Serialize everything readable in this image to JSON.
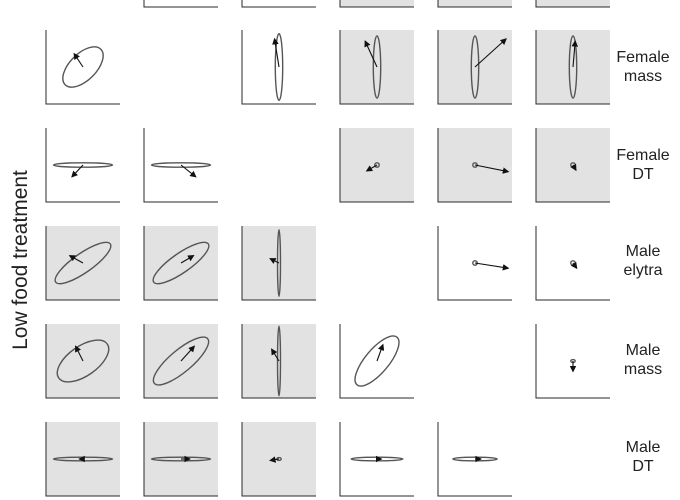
{
  "side_title": "Low food treatment",
  "row_labels": [
    {
      "line1": "Female",
      "line2": "mass"
    },
    {
      "line1": "Female",
      "line2": "DT"
    },
    {
      "line1": "Male",
      "line2": "elytra"
    },
    {
      "line1": "Male",
      "line2": "mass"
    },
    {
      "line1": "Male",
      "line2": "DT"
    }
  ],
  "colors": {
    "shaded_panel": "#e2e2e2",
    "ink": "#555555",
    "arrow": "#111111"
  },
  "panels": [
    {
      "row": 0,
      "col": 0,
      "shaded": false,
      "ellipse": {
        "rx": 0.34,
        "ry": 0.18,
        "angle": -45
      },
      "arrow": {
        "dx": -0.12,
        "dy": -0.18
      }
    },
    {
      "row": 0,
      "col": 2,
      "shaded": false,
      "ellipse": {
        "rx": 0.45,
        "ry": 0.05,
        "angle": -90
      },
      "arrow": {
        "dx": -0.06,
        "dy": -0.38
      }
    },
    {
      "row": 0,
      "col": 3,
      "shaded": true,
      "ellipse": {
        "rx": 0.42,
        "ry": 0.05,
        "angle": -90
      },
      "arrow": {
        "dx": -0.16,
        "dy": -0.35
      }
    },
    {
      "row": 0,
      "col": 4,
      "shaded": true,
      "ellipse": {
        "rx": 0.42,
        "ry": 0.05,
        "angle": -90
      },
      "arrow": {
        "dx": 0.42,
        "dy": -0.38
      }
    },
    {
      "row": 0,
      "col": 5,
      "shaded": true,
      "ellipse": {
        "rx": 0.42,
        "ry": 0.05,
        "angle": -90
      },
      "arrow": {
        "dx": 0.03,
        "dy": -0.35
      }
    },
    {
      "row": 1,
      "col": 0,
      "shaded": false,
      "ellipse": {
        "rx": 0.4,
        "ry": 0.03,
        "angle": 0
      },
      "arrow": {
        "dx": -0.15,
        "dy": 0.16
      }
    },
    {
      "row": 1,
      "col": 1,
      "shaded": false,
      "ellipse": {
        "rx": 0.4,
        "ry": 0.03,
        "angle": 0
      },
      "arrow": {
        "dx": 0.2,
        "dy": 0.16
      }
    },
    {
      "row": 1,
      "col": 3,
      "shaded": true,
      "ellipse": {
        "rx": 0.03,
        "ry": 0.03,
        "angle": 0
      },
      "arrow": {
        "dx": -0.14,
        "dy": 0.08
      }
    },
    {
      "row": 1,
      "col": 4,
      "shaded": true,
      "ellipse": {
        "rx": 0.03,
        "ry": 0.03,
        "angle": 0
      },
      "arrow": {
        "dx": 0.45,
        "dy": 0.09
      }
    },
    {
      "row": 1,
      "col": 5,
      "shaded": true,
      "ellipse": {
        "rx": 0.03,
        "ry": 0.03,
        "angle": 0
      },
      "arrow": {
        "dx": 0.04,
        "dy": 0.07
      }
    },
    {
      "row": 2,
      "col": 0,
      "shaded": true,
      "ellipse": {
        "rx": 0.45,
        "ry": 0.13,
        "angle": -35
      },
      "arrow": {
        "dx": -0.18,
        "dy": -0.1
      }
    },
    {
      "row": 2,
      "col": 1,
      "shaded": true,
      "ellipse": {
        "rx": 0.45,
        "ry": 0.13,
        "angle": -35
      },
      "arrow": {
        "dx": 0.17,
        "dy": -0.1
      }
    },
    {
      "row": 2,
      "col": 2,
      "shaded": true,
      "ellipse": {
        "rx": 0.45,
        "ry": 0.02,
        "angle": -90
      },
      "arrow": {
        "dx": -0.12,
        "dy": -0.06
      }
    },
    {
      "row": 2,
      "col": 4,
      "shaded": false,
      "ellipse": {
        "rx": 0.03,
        "ry": 0.03,
        "angle": 0
      },
      "arrow": {
        "dx": 0.45,
        "dy": 0.07
      }
    },
    {
      "row": 2,
      "col": 5,
      "shaded": false,
      "ellipse": {
        "rx": 0.03,
        "ry": 0.03,
        "angle": 0
      },
      "arrow": {
        "dx": 0.05,
        "dy": 0.07
      }
    },
    {
      "row": 3,
      "col": 0,
      "shaded": true,
      "ellipse": {
        "rx": 0.4,
        "ry": 0.2,
        "angle": -35
      },
      "arrow": {
        "dx": -0.1,
        "dy": -0.2
      }
    },
    {
      "row": 3,
      "col": 1,
      "shaded": true,
      "ellipse": {
        "rx": 0.47,
        "ry": 0.15,
        "angle": -40
      },
      "arrow": {
        "dx": 0.18,
        "dy": -0.2
      }
    },
    {
      "row": 3,
      "col": 2,
      "shaded": true,
      "ellipse": {
        "rx": 0.47,
        "ry": 0.02,
        "angle": -90
      },
      "arrow": {
        "dx": -0.1,
        "dy": -0.16
      }
    },
    {
      "row": 3,
      "col": 3,
      "shaded": false,
      "ellipse": {
        "rx": 0.42,
        "ry": 0.16,
        "angle": -50
      },
      "arrow": {
        "dx": 0.08,
        "dy": -0.22
      }
    },
    {
      "row": 3,
      "col": 5,
      "shaded": false,
      "ellipse": {
        "rx": 0.02,
        "ry": 0.02,
        "angle": 0
      },
      "arrow": {
        "dx": 0.0,
        "dy": 0.14
      }
    },
    {
      "row": 4,
      "col": 0,
      "shaded": true,
      "ellipse": {
        "rx": 0.4,
        "ry": 0.025,
        "angle": 0
      },
      "arrow": {
        "dx": -0.05,
        "dy": 0.0
      }
    },
    {
      "row": 4,
      "col": 1,
      "shaded": true,
      "ellipse": {
        "rx": 0.4,
        "ry": 0.025,
        "angle": 0
      },
      "arrow": {
        "dx": 0.12,
        "dy": 0.0
      }
    },
    {
      "row": 4,
      "col": 2,
      "shaded": true,
      "ellipse": {
        "rx": 0.02,
        "ry": 0.02,
        "angle": 0
      },
      "arrow": {
        "dx": -0.12,
        "dy": 0.02
      }
    },
    {
      "row": 4,
      "col": 3,
      "shaded": false,
      "ellipse": {
        "rx": 0.35,
        "ry": 0.025,
        "angle": 0
      },
      "arrow": {
        "dx": 0.06,
        "dy": 0.0
      }
    },
    {
      "row": 4,
      "col": 4,
      "shaded": false,
      "ellipse": {
        "rx": 0.3,
        "ry": 0.025,
        "angle": 0
      },
      "arrow": {
        "dx": 0.08,
        "dy": 0.0
      }
    }
  ],
  "top_strip": [
    {
      "col": 1,
      "shaded": false
    },
    {
      "col": 2,
      "shaded": false
    },
    {
      "col": 3,
      "shaded": true
    },
    {
      "col": 4,
      "shaded": true
    },
    {
      "col": 5,
      "shaded": true
    }
  ]
}
